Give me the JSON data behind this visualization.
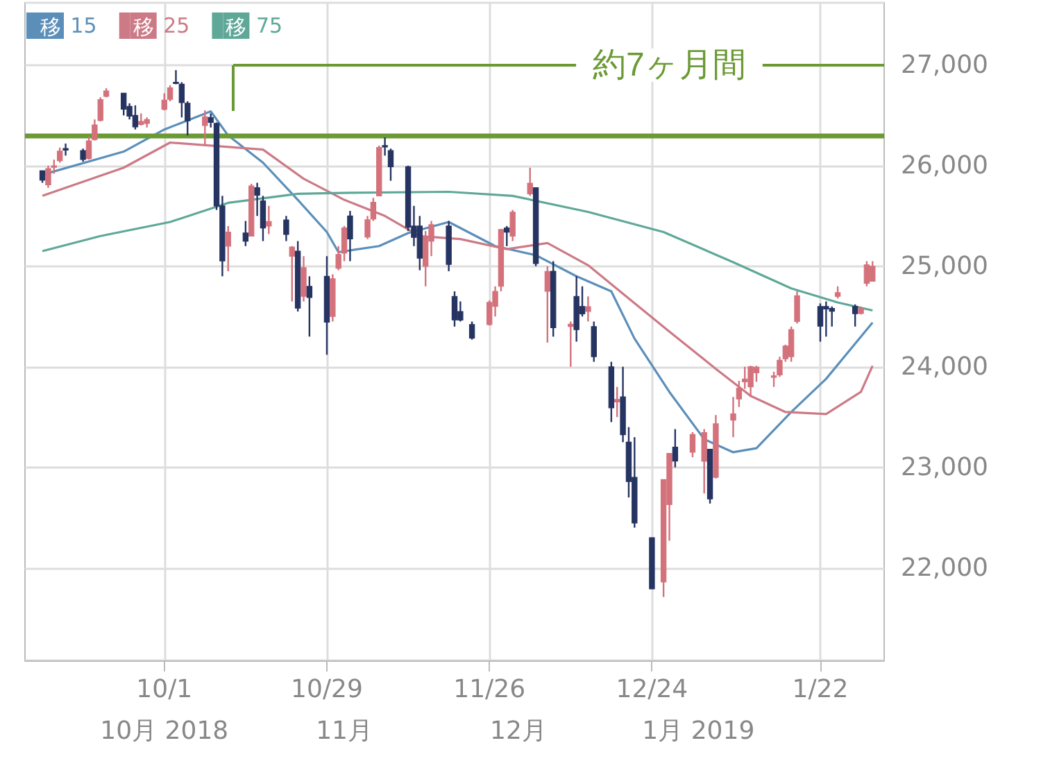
{
  "chart_data": {
    "type": "candlestick",
    "x": [
      "2018-09-10",
      "2018-09-11",
      "2018-09-12",
      "2018-09-13",
      "2018-09-14",
      "2018-09-17",
      "2018-09-18",
      "2018-09-19",
      "2018-09-20",
      "2018-09-21",
      "2018-09-24",
      "2018-09-25",
      "2018-09-26",
      "2018-09-27",
      "2018-09-28",
      "2018-10-01",
      "2018-10-02",
      "2018-10-03",
      "2018-10-04",
      "2018-10-05",
      "2018-10-08",
      "2018-10-09",
      "2018-10-10",
      "2018-10-11",
      "2018-10-12",
      "2018-10-15",
      "2018-10-16",
      "2018-10-17",
      "2018-10-18",
      "2018-10-19",
      "2018-10-22",
      "2018-10-23",
      "2018-10-24",
      "2018-10-25",
      "2018-10-26",
      "2018-10-29",
      "2018-10-30",
      "2018-10-31",
      "2018-11-01",
      "2018-11-02",
      "2018-11-05",
      "2018-11-06",
      "2018-11-07",
      "2018-11-08",
      "2018-11-09",
      "2018-11-12",
      "2018-11-13",
      "2018-11-14",
      "2018-11-15",
      "2018-11-16",
      "2018-11-19",
      "2018-11-20",
      "2018-11-21",
      "2018-11-23",
      "2018-11-26",
      "2018-11-27",
      "2018-11-28",
      "2018-11-29",
      "2018-11-30",
      "2018-12-03",
      "2018-12-04",
      "2018-12-06",
      "2018-12-07",
      "2018-12-10",
      "2018-12-11",
      "2018-12-12",
      "2018-12-13",
      "2018-12-14",
      "2018-12-17",
      "2018-12-18",
      "2018-12-19",
      "2018-12-20",
      "2018-12-21",
      "2018-12-24",
      "2018-12-26",
      "2018-12-27",
      "2018-12-28",
      "2018-12-31",
      "2019-01-02",
      "2019-01-03",
      "2019-01-04",
      "2019-01-07",
      "2019-01-08",
      "2019-01-09",
      "2019-01-10",
      "2019-01-11",
      "2019-01-14",
      "2019-01-15",
      "2019-01-16",
      "2019-01-17",
      "2019-01-18",
      "2019-01-22",
      "2019-01-23",
      "2019-01-24",
      "2019-01-25",
      "2019-01-28",
      "2019-01-29",
      "2019-01-30",
      "2019-01-31"
    ],
    "series": [
      {
        "colors": [
          "#263462",
          "#d4727c",
          "#d4727c",
          "#d4727c",
          "#263462",
          "#263462",
          "#d4727c",
          "#d4727c",
          "#d4727c",
          "#d4727c",
          "#263462",
          "#263462",
          "#263462",
          "#d4727c",
          "#d4727c",
          "#d4727c",
          "#d4727c",
          "#263462",
          "#263462",
          "#263462",
          "#d4727c",
          "#263462",
          "#263462",
          "#263462",
          "#d4727c",
          "#263462",
          "#d4727c",
          "#263462",
          "#263462",
          "#d4727c",
          "#263462",
          "#d4727c",
          "#263462",
          "#d4727c",
          "#263462",
          "#263462",
          "#d4727c",
          "#d4727c",
          "#d4727c",
          "#263462",
          "#d4727c",
          "#d4727c",
          "#d4727c",
          "#263462",
          "#263462",
          "#263462",
          "#263462",
          "#263462",
          "#d4727c",
          "#d4727c",
          "#263462",
          "#263462",
          "#263462",
          "#263462",
          "#d4727c",
          "#d4727c",
          "#d4727c",
          "#263462",
          "#d4727c",
          "#d4727c",
          "#263462",
          "#d4727c",
          "#263462",
          "#d4727c",
          "#263462",
          "#263462",
          "#d4727c",
          "#263462",
          "#263462",
          "#d4727c",
          "#263462",
          "#263462",
          "#263462",
          "#263462",
          "#d4727c",
          "#d4727c",
          "#263462",
          "#d4727c",
          "#d4727c",
          "#263462",
          "#d4727c",
          "#d4727c",
          "#d4727c",
          "#d4727c",
          "#d4727c",
          "#d4727c",
          "#d4727c",
          "#d4727c",
          "#d4727c",
          "#d4727c",
          "#d4727c",
          "#263462",
          "#263462",
          "#263462",
          "#d4727c",
          "#263462",
          "#d4727c",
          "#d4727c",
          "#d4727c"
        ],
        "ohlc": [
          [
            25950,
            25950,
            25830,
            25857
          ],
          [
            25810,
            26000,
            25780,
            25971
          ],
          [
            25990,
            26060,
            25920,
            25998
          ],
          [
            26050,
            26180,
            26030,
            26145
          ],
          [
            26170,
            26220,
            26100,
            26154
          ],
          [
            26150,
            26170,
            26040,
            26062
          ],
          [
            26070,
            26290,
            26060,
            26246
          ],
          [
            26260,
            26460,
            26250,
            26405
          ],
          [
            26450,
            26680,
            26440,
            26657
          ],
          [
            26690,
            26770,
            26680,
            26743
          ],
          [
            26720,
            26720,
            26500,
            26562
          ],
          [
            26590,
            26620,
            26460,
            26492
          ],
          [
            26500,
            26600,
            26360,
            26385
          ],
          [
            26410,
            26520,
            26400,
            26440
          ],
          [
            26420,
            26480,
            26380,
            26458
          ],
          [
            26560,
            26720,
            26550,
            26651
          ],
          [
            26660,
            26800,
            26640,
            26774
          ],
          [
            26830,
            26950,
            26810,
            26828
          ],
          [
            26810,
            26830,
            26480,
            26627
          ],
          [
            26620,
            26640,
            26300,
            26447
          ],
          [
            26400,
            26550,
            26200,
            26487
          ],
          [
            26480,
            26520,
            26380,
            26430
          ],
          [
            26420,
            26430,
            25560,
            25599
          ],
          [
            25600,
            25700,
            24900,
            25053
          ],
          [
            25200,
            25400,
            24950,
            25340
          ],
          [
            25330,
            25450,
            25200,
            25250
          ],
          [
            25300,
            25820,
            25300,
            25798
          ],
          [
            25780,
            25830,
            25500,
            25706
          ],
          [
            25650,
            25700,
            25250,
            25380
          ],
          [
            25400,
            25600,
            25320,
            25444
          ],
          [
            25460,
            25500,
            25250,
            25317
          ],
          [
            25100,
            25200,
            24650,
            25191
          ],
          [
            25150,
            25250,
            24550,
            24583
          ],
          [
            24700,
            25100,
            24650,
            24985
          ],
          [
            24800,
            24900,
            24300,
            24688
          ],
          [
            24900,
            25100,
            24120,
            24443
          ],
          [
            24500,
            24920,
            24450,
            24875
          ],
          [
            24980,
            25200,
            24960,
            25116
          ],
          [
            25130,
            25400,
            25050,
            25380
          ],
          [
            25500,
            25550,
            25050,
            25271
          ],
          [
            25290,
            25500,
            25270,
            25462
          ],
          [
            25470,
            25680,
            25450,
            25636
          ],
          [
            25700,
            26200,
            25700,
            26181
          ],
          [
            26200,
            26280,
            26100,
            26191
          ],
          [
            26150,
            26170,
            25850,
            25989
          ],
          [
            25990,
            26000,
            25350,
            25387
          ],
          [
            25400,
            25600,
            25200,
            25287
          ],
          [
            25400,
            25500,
            24960,
            25081
          ],
          [
            25000,
            25350,
            24800,
            25290
          ],
          [
            25250,
            25450,
            25100,
            25413
          ],
          [
            25400,
            25450,
            24950,
            25018
          ],
          [
            24700,
            24750,
            24400,
            24466
          ],
          [
            24550,
            24650,
            24450,
            24464
          ],
          [
            24420,
            24450,
            24270,
            24286
          ],
          [
            24420,
            24660,
            24410,
            24640
          ],
          [
            24600,
            24800,
            24500,
            24749
          ],
          [
            24800,
            25370,
            24750,
            25366
          ],
          [
            25380,
            25400,
            25200,
            25339
          ],
          [
            25300,
            25560,
            25250,
            25538
          ],
          [
            25720,
            25980,
            25700,
            25826
          ],
          [
            25780,
            25780,
            25000,
            25027
          ],
          [
            24750,
            25000,
            24240,
            24947
          ],
          [
            24950,
            25050,
            24300,
            24389
          ],
          [
            24400,
            24450,
            24000,
            24423
          ],
          [
            24700,
            24900,
            24250,
            24370
          ],
          [
            24600,
            24800,
            24500,
            24527
          ],
          [
            24550,
            24700,
            24450,
            24597
          ],
          [
            24400,
            24450,
            24050,
            24101
          ],
          [
            24000,
            24050,
            23450,
            23592
          ],
          [
            23650,
            23800,
            23500,
            23675
          ],
          [
            23700,
            24000,
            23250,
            23324
          ],
          [
            23250,
            23400,
            22700,
            22859
          ],
          [
            22900,
            23300,
            22400,
            22446
          ],
          [
            22300,
            22300,
            21790,
            21792
          ],
          [
            21860,
            22880,
            21710,
            22878
          ],
          [
            22630,
            23140,
            22270,
            23139
          ],
          [
            23200,
            23380,
            23000,
            23062
          ],
          [
            23150,
            23350,
            23100,
            23327
          ],
          [
            23060,
            23380,
            22740,
            23346
          ],
          [
            23180,
            23180,
            22640,
            22686
          ],
          [
            22900,
            23520,
            22890,
            23433
          ],
          [
            23470,
            23700,
            23300,
            23531
          ],
          [
            23680,
            23860,
            23600,
            23787
          ],
          [
            23850,
            24000,
            23780,
            23879
          ],
          [
            23800,
            24010,
            23700,
            24001
          ],
          [
            23940,
            24010,
            23850,
            23996
          ],
          [
            23900,
            23950,
            23800,
            23910
          ],
          [
            23920,
            24100,
            23900,
            24065
          ],
          [
            24080,
            24220,
            24050,
            24207
          ],
          [
            24100,
            24400,
            24050,
            24370
          ],
          [
            24450,
            24750,
            24430,
            24706
          ],
          [
            24600,
            24630,
            24250,
            24404
          ],
          [
            24600,
            24650,
            24300,
            24575
          ],
          [
            24580,
            24600,
            24400,
            24553
          ],
          [
            24700,
            24800,
            24680,
            24737
          ],
          [
            24600,
            24620,
            24400,
            24528
          ],
          [
            24530,
            24600,
            24520,
            24579
          ],
          [
            24830,
            25050,
            24800,
            25014
          ],
          [
            24850,
            25050,
            24850,
            24999
          ]
        ]
      },
      {
        "type": "line",
        "name": "移 15",
        "color": "#5b8fba",
        "x": [
          "2018-09-10",
          "2018-09-24",
          "2018-10-01",
          "2018-10-09",
          "2018-10-12",
          "2018-10-18",
          "2018-10-24",
          "2018-10-29",
          "2018-10-31",
          "2018-11-07",
          "2018-11-12",
          "2018-11-19",
          "2018-11-27",
          "2018-12-04",
          "2018-12-11",
          "2018-12-17",
          "2018-12-21",
          "2018-12-27",
          "2019-01-02",
          "2019-01-07",
          "2019-01-11",
          "2019-01-17",
          "2019-01-23",
          "2019-01-31"
        ],
        "values": [
          25910,
          26140,
          26360,
          26540,
          26300,
          26030,
          25660,
          25340,
          25140,
          25200,
          25330,
          25440,
          25200,
          25110,
          24900,
          24750,
          24280,
          23750,
          23280,
          23150,
          23190,
          23550,
          23880,
          24440
        ]
      },
      {
        "type": "line",
        "name": "移 25",
        "color": "#cc7a86",
        "x": [
          "2018-09-10",
          "2018-09-24",
          "2018-10-02",
          "2018-10-10",
          "2018-10-18",
          "2018-10-25",
          "2018-11-01",
          "2018-11-08",
          "2018-11-14",
          "2018-11-21",
          "2018-11-29",
          "2018-12-06",
          "2018-12-13",
          "2018-12-20",
          "2018-12-27",
          "2019-01-04",
          "2019-01-10",
          "2019-01-16",
          "2019-01-23",
          "2019-01-29",
          "2019-01-31"
        ],
        "values": [
          25700,
          25980,
          26230,
          null,
          26160,
          25870,
          25660,
          25500,
          25300,
          25270,
          25170,
          25230,
          25010,
          24680,
          24350,
          23980,
          23710,
          23550,
          23530,
          23750,
          24010
        ]
      },
      {
        "type": "line",
        "name": "移 75",
        "color": "#5fa898",
        "x": [
          "2018-09-10",
          "2018-09-20",
          "2018-10-02",
          "2018-10-12",
          "2018-10-24",
          "2018-11-02",
          "2018-11-19",
          "2018-11-30",
          "2018-12-13",
          "2018-12-26",
          "2019-01-07",
          "2019-01-17",
          "2019-01-25",
          "2019-01-31"
        ],
        "values": [
          25150,
          25300,
          25440,
          25630,
          25720,
          25730,
          25740,
          25700,
          25540,
          25340,
          25040,
          24780,
          24640,
          24560
        ]
      }
    ],
    "xlim": [
      "2018-09-07",
      "2019-02-02"
    ],
    "xticks": [
      {
        "value": "2018-10-01",
        "label": "10/1"
      },
      {
        "value": "2018-10-29",
        "label": "10/29"
      },
      {
        "value": "2018-11-26",
        "label": "11/26"
      },
      {
        "value": "2018-12-24",
        "label": "12/24"
      },
      {
        "value": "2019-01-22",
        "label": "1/22"
      }
    ],
    "x2lim": [
      "2018-09-07",
      "2019-02-02"
    ],
    "x2ticks": [
      {
        "value": "2018-10-01",
        "label": "10月 2018"
      },
      {
        "value": "2018-11-01",
        "label": "11月"
      },
      {
        "value": "2018-12-01",
        "label": "12月"
      },
      {
        "value": "2019-01-01",
        "label": "1月 2019"
      }
    ],
    "ylim": [
      21080,
      27620
    ],
    "yticks": [
      {
        "value": 22000,
        "label": "22,000"
      },
      {
        "value": 23000,
        "label": "23,000"
      },
      {
        "value": 24000,
        "label": "24,000"
      },
      {
        "value": 25000,
        "label": "25,000"
      },
      {
        "value": 26000,
        "label": "26,000"
      },
      {
        "value": 27000,
        "label": "27,000"
      }
    ],
    "ref_lines": [
      {
        "axis": "y",
        "value": 26300,
        "color": "#6b9a35"
      }
    ],
    "annotations": [
      "約7ヶ月間"
    ],
    "grid": true,
    "legend": "top left",
    "marker": "none",
    "line_style": "solid"
  }
}
